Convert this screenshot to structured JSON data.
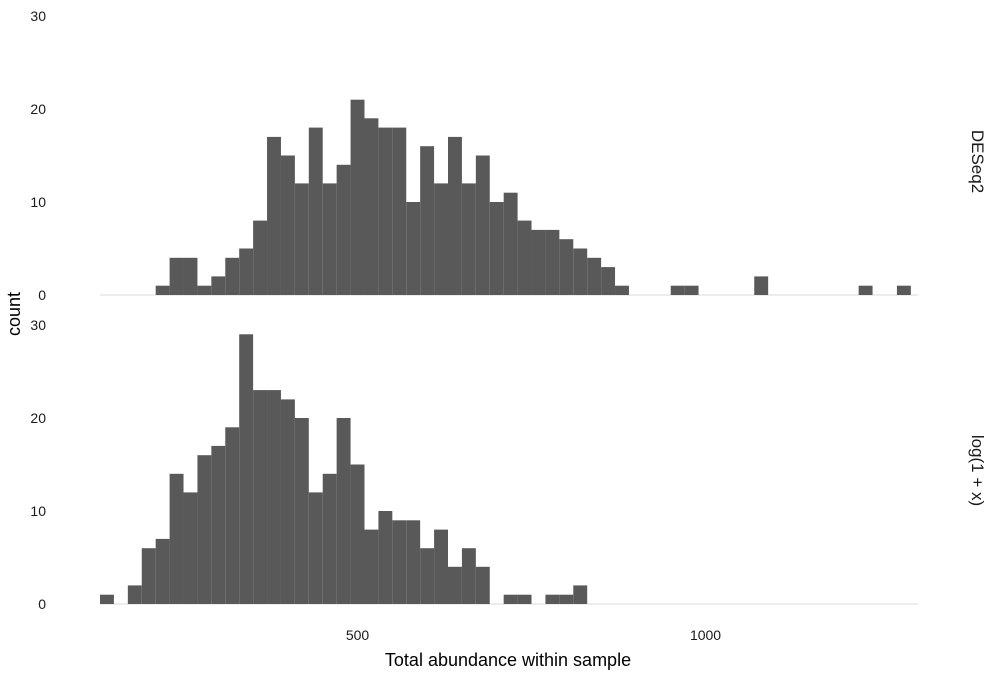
{
  "chart_data": {
    "type": "bar",
    "subtype": "faceted-histogram",
    "xlabel": "Total abundance within sample",
    "ylabel": "count",
    "x_ticks": [
      500,
      1000
    ],
    "y_ticks": [
      0,
      10,
      20,
      30
    ],
    "xlim": [
      130,
      1295
    ],
    "ylim": [
      0,
      30
    ],
    "bin_width": 20,
    "grid": false,
    "bar_color": "#595959",
    "baseline_color": "#d9d9d9",
    "facets": [
      {
        "strip_label": "DESeq2",
        "bins": [
          {
            "x0": 210,
            "count": 1
          },
          {
            "x0": 230,
            "count": 4
          },
          {
            "x0": 250,
            "count": 4
          },
          {
            "x0": 270,
            "count": 1
          },
          {
            "x0": 290,
            "count": 2
          },
          {
            "x0": 310,
            "count": 4
          },
          {
            "x0": 330,
            "count": 5
          },
          {
            "x0": 350,
            "count": 8
          },
          {
            "x0": 370,
            "count": 17
          },
          {
            "x0": 390,
            "count": 15
          },
          {
            "x0": 410,
            "count": 12
          },
          {
            "x0": 430,
            "count": 18
          },
          {
            "x0": 450,
            "count": 12
          },
          {
            "x0": 470,
            "count": 14
          },
          {
            "x0": 490,
            "count": 21
          },
          {
            "x0": 510,
            "count": 19
          },
          {
            "x0": 530,
            "count": 18
          },
          {
            "x0": 550,
            "count": 18
          },
          {
            "x0": 570,
            "count": 10
          },
          {
            "x0": 590,
            "count": 16
          },
          {
            "x0": 610,
            "count": 12
          },
          {
            "x0": 630,
            "count": 17
          },
          {
            "x0": 650,
            "count": 12
          },
          {
            "x0": 670,
            "count": 15
          },
          {
            "x0": 690,
            "count": 10
          },
          {
            "x0": 710,
            "count": 11
          },
          {
            "x0": 730,
            "count": 8
          },
          {
            "x0": 750,
            "count": 7
          },
          {
            "x0": 770,
            "count": 7
          },
          {
            "x0": 790,
            "count": 6
          },
          {
            "x0": 810,
            "count": 5
          },
          {
            "x0": 830,
            "count": 4
          },
          {
            "x0": 850,
            "count": 3
          },
          {
            "x0": 870,
            "count": 1
          },
          {
            "x0": 950,
            "count": 1
          },
          {
            "x0": 970,
            "count": 1
          },
          {
            "x0": 1070,
            "count": 2
          },
          {
            "x0": 1220,
            "count": 1
          },
          {
            "x0": 1275,
            "count": 1
          }
        ]
      },
      {
        "strip_label": "log(1 + x)",
        "bins": [
          {
            "x0": 130,
            "count": 1
          },
          {
            "x0": 170,
            "count": 2
          },
          {
            "x0": 190,
            "count": 6
          },
          {
            "x0": 210,
            "count": 7
          },
          {
            "x0": 230,
            "count": 14
          },
          {
            "x0": 250,
            "count": 12
          },
          {
            "x0": 270,
            "count": 16
          },
          {
            "x0": 290,
            "count": 17
          },
          {
            "x0": 310,
            "count": 19
          },
          {
            "x0": 330,
            "count": 29
          },
          {
            "x0": 350,
            "count": 23
          },
          {
            "x0": 370,
            "count": 23
          },
          {
            "x0": 390,
            "count": 22
          },
          {
            "x0": 410,
            "count": 20
          },
          {
            "x0": 430,
            "count": 12
          },
          {
            "x0": 450,
            "count": 14
          },
          {
            "x0": 470,
            "count": 20
          },
          {
            "x0": 490,
            "count": 15
          },
          {
            "x0": 510,
            "count": 8
          },
          {
            "x0": 530,
            "count": 10
          },
          {
            "x0": 550,
            "count": 9
          },
          {
            "x0": 570,
            "count": 9
          },
          {
            "x0": 590,
            "count": 6
          },
          {
            "x0": 610,
            "count": 8
          },
          {
            "x0": 630,
            "count": 4
          },
          {
            "x0": 650,
            "count": 6
          },
          {
            "x0": 670,
            "count": 4
          },
          {
            "x0": 710,
            "count": 1
          },
          {
            "x0": 730,
            "count": 1
          },
          {
            "x0": 770,
            "count": 1
          },
          {
            "x0": 790,
            "count": 1
          },
          {
            "x0": 810,
            "count": 2
          }
        ]
      }
    ]
  }
}
